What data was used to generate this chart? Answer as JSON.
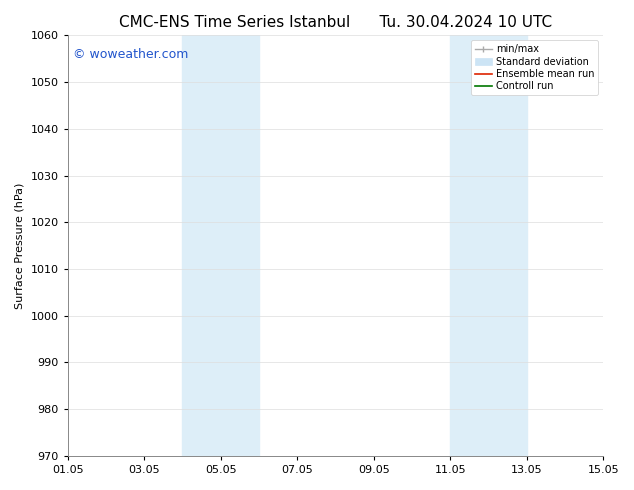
{
  "title_left": "CMC-ENS Time Series Istanbul",
  "title_right": "Tu. 30.04.2024 10 UTC",
  "ylabel": "Surface Pressure (hPa)",
  "ylim": [
    970,
    1060
  ],
  "yticks": [
    970,
    980,
    990,
    1000,
    1010,
    1020,
    1030,
    1040,
    1050,
    1060
  ],
  "xlim": [
    0,
    14
  ],
  "xtick_labels": [
    "01.05",
    "03.05",
    "05.05",
    "07.05",
    "09.05",
    "11.05",
    "13.05",
    "15.05"
  ],
  "xtick_positions": [
    0,
    2,
    4,
    6,
    8,
    10,
    12,
    14
  ],
  "shaded_regions": [
    {
      "x_start": 3.0,
      "x_end": 4.0,
      "color": "#ddeef8"
    },
    {
      "x_start": 4.0,
      "x_end": 5.0,
      "color": "#ddeef8"
    },
    {
      "x_start": 10.0,
      "x_end": 11.0,
      "color": "#ddeef8"
    },
    {
      "x_start": 11.0,
      "x_end": 12.0,
      "color": "#ddeef8"
    }
  ],
  "watermark_text": "© woweather.com",
  "watermark_color": "#2255cc",
  "watermark_fontsize": 9,
  "bg_color": "#ffffff",
  "grid_color": "#dddddd",
  "legend_minmax_color": "#aaaaaa",
  "legend_std_color": "#cce4f5",
  "legend_ens_color": "#dd2200",
  "legend_ctrl_color": "#007700",
  "title_fontsize": 11,
  "axis_fontsize": 8,
  "tick_fontsize": 8
}
